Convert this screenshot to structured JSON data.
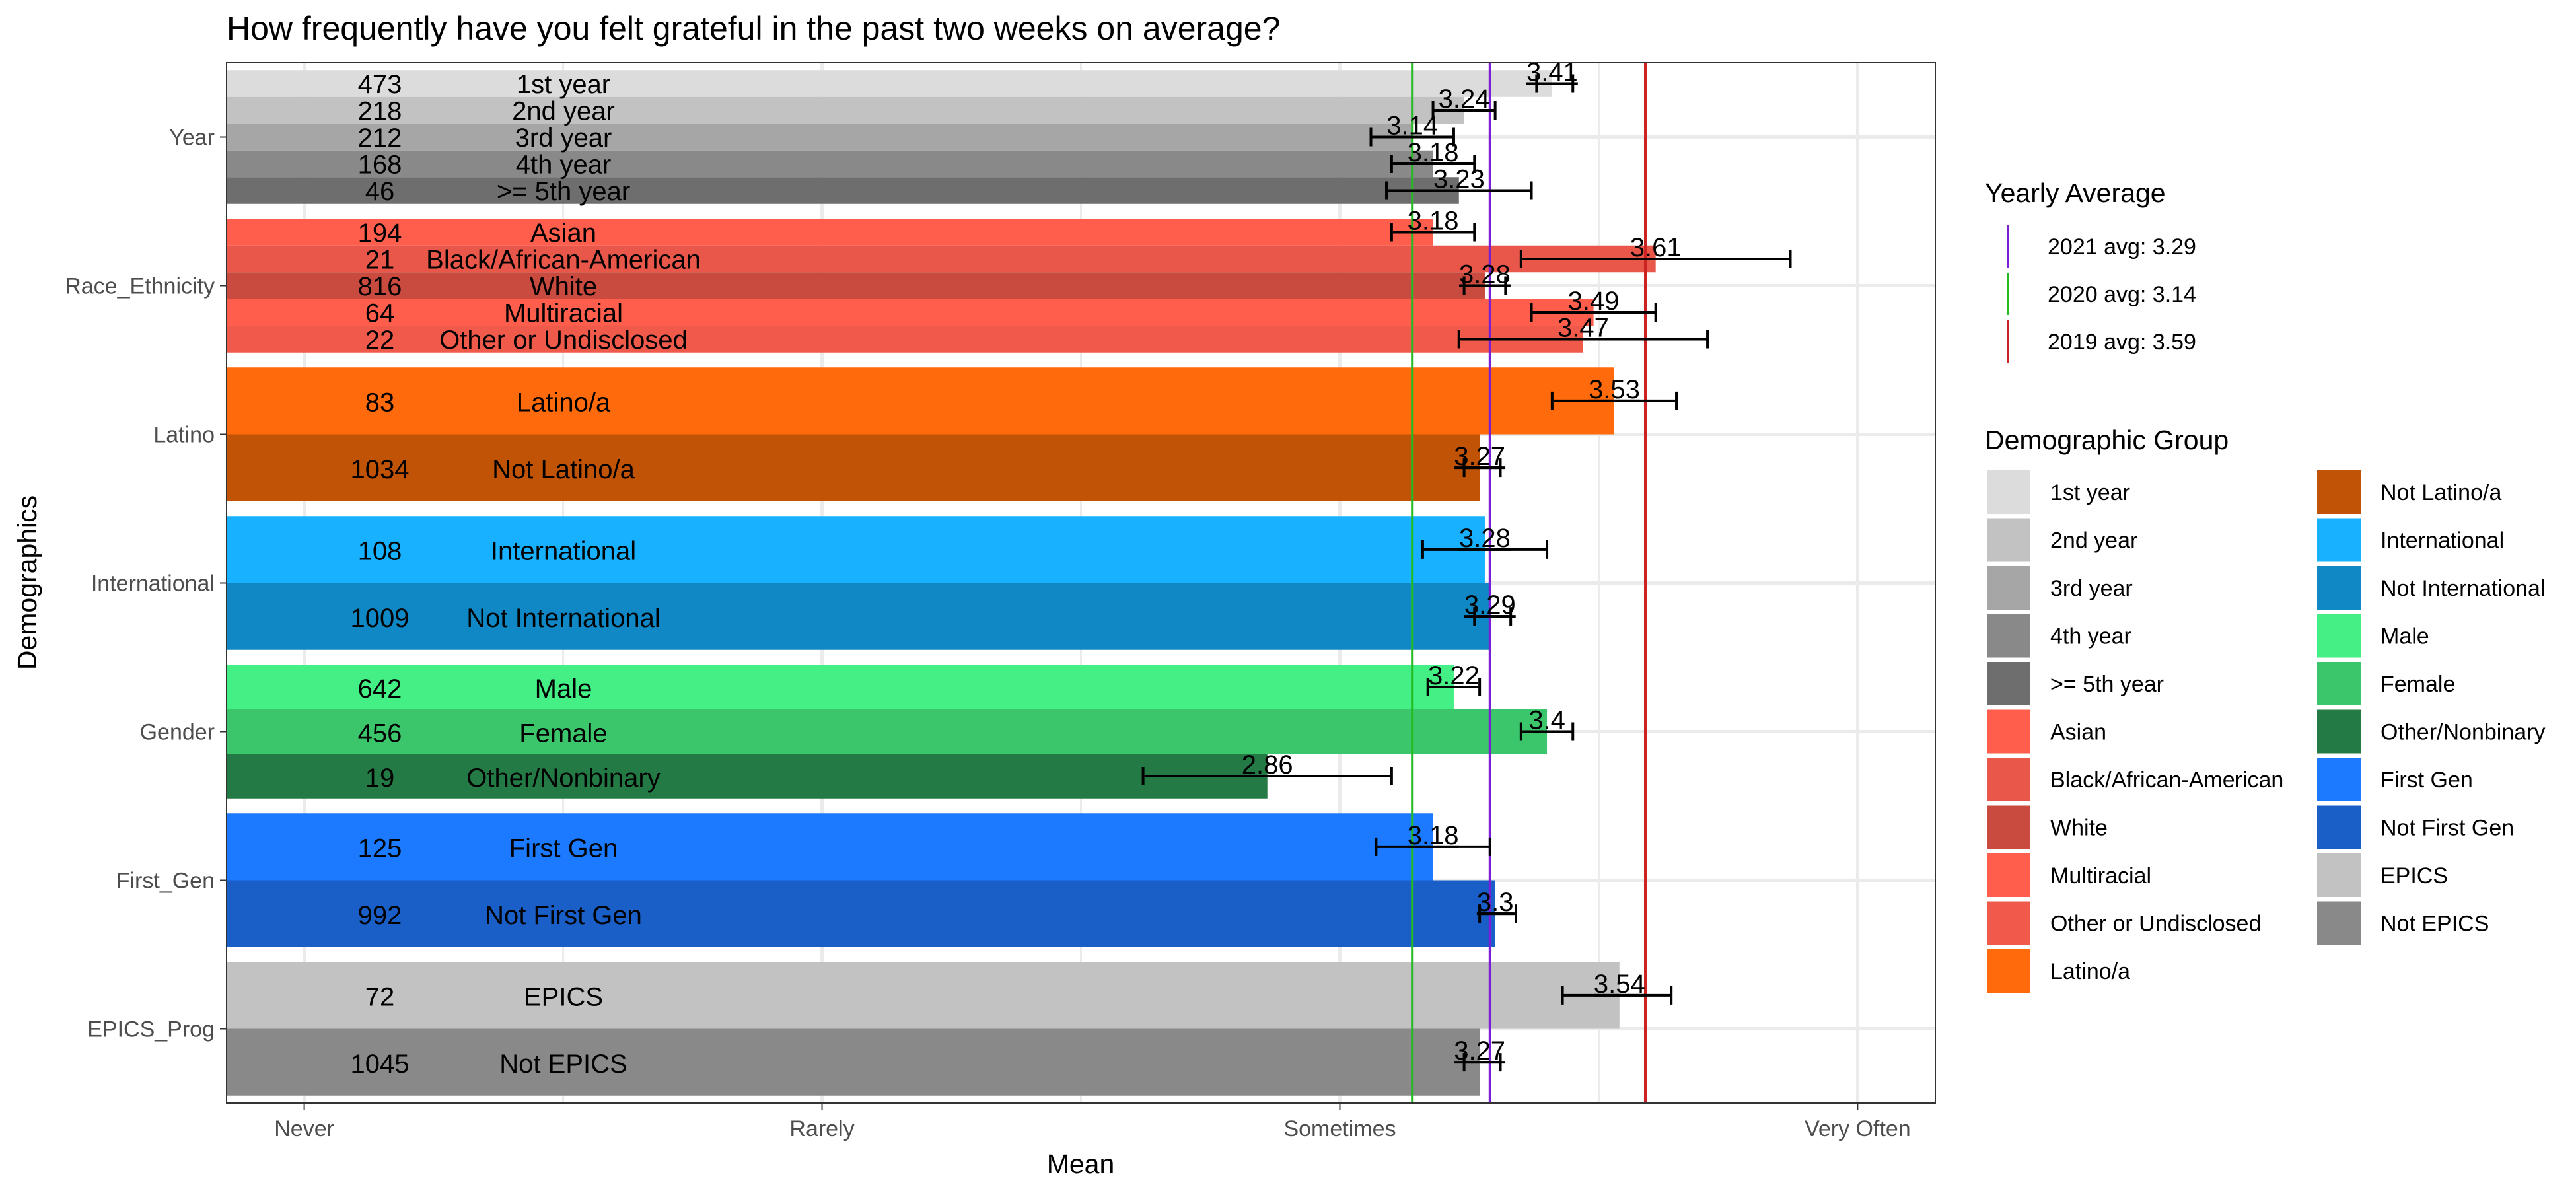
{
  "chart_data": {
    "type": "bar",
    "orientation": "horizontal",
    "title": "How frequently have you felt grateful in the past two weeks on average?",
    "xlabel": "Mean",
    "ylabel": "Demographics",
    "xlim": [
      0.85,
      4.15
    ],
    "x_ticks": [
      {
        "value": 1,
        "label": "Never"
      },
      {
        "value": 2,
        "label": "Rarely"
      },
      {
        "value": 3,
        "label": "Sometimes"
      },
      {
        "value": 4,
        "label": "Very Often"
      }
    ],
    "grid": true,
    "legend_placement": "right",
    "groups": [
      {
        "name": "Year",
        "bars": [
          {
            "label": "1st year",
            "n": "473",
            "mean": 3.41,
            "err": [
              3.38,
              3.45
            ],
            "color": "#DCDCDC"
          },
          {
            "label": "2nd year",
            "n": "218",
            "mean": 3.24,
            "err": [
              3.18,
              3.3
            ],
            "color": "#C2C2C2"
          },
          {
            "label": "3rd year",
            "n": "212",
            "mean": 3.14,
            "err": [
              3.06,
              3.22
            ],
            "color": "#A6A6A6"
          },
          {
            "label": "4th year",
            "n": "168",
            "mean": 3.18,
            "err": [
              3.1,
              3.26
            ],
            "color": "#898989"
          },
          {
            "label": ">= 5th year",
            "n": "46",
            "mean": 3.23,
            "err": [
              3.09,
              3.37
            ],
            "color": "#6E6E6E"
          }
        ]
      },
      {
        "name": "Race_Ethnicity",
        "bars": [
          {
            "label": "Asian",
            "n": "194",
            "mean": 3.18,
            "err": [
              3.1,
              3.26
            ],
            "color": "#FF5E4D"
          },
          {
            "label": "Black/African-American",
            "n": "21",
            "mean": 3.61,
            "err": [
              3.35,
              3.87
            ],
            "color": "#E8574A"
          },
          {
            "label": "White",
            "n": "816",
            "mean": 3.28,
            "err": [
              3.24,
              3.32
            ],
            "color": "#C94A3F"
          },
          {
            "label": "Multiracial",
            "n": "64",
            "mean": 3.49,
            "err": [
              3.37,
              3.61
            ],
            "color": "#FF5E4D"
          },
          {
            "label": "Other or Undisclosed",
            "n": "22",
            "mean": 3.47,
            "err": [
              3.23,
              3.71
            ],
            "color": "#EF5A4B"
          }
        ]
      },
      {
        "name": "Latino",
        "bars": [
          {
            "label": "Latino/a",
            "n": "83",
            "mean": 3.53,
            "err": [
              3.41,
              3.65
            ],
            "color": "#FF6A0C"
          },
          {
            "label": "Not Latino/a",
            "n": "1034",
            "mean": 3.27,
            "err": [
              3.24,
              3.31
            ],
            "color": "#C15306"
          }
        ]
      },
      {
        "name": "International",
        "bars": [
          {
            "label": "International",
            "n": "108",
            "mean": 3.28,
            "err": [
              3.16,
              3.4
            ],
            "color": "#18B1FF"
          },
          {
            "label": "Not International",
            "n": "1009",
            "mean": 3.29,
            "err": [
              3.26,
              3.33
            ],
            "color": "#1088C6"
          }
        ]
      },
      {
        "name": "Gender",
        "bars": [
          {
            "label": "Male",
            "n": "642",
            "mean": 3.22,
            "err": [
              3.17,
              3.27
            ],
            "color": "#44EF85"
          },
          {
            "label": "Female",
            "n": "456",
            "mean": 3.4,
            "err": [
              3.35,
              3.45
            ],
            "color": "#3CC66C"
          },
          {
            "label": "Other/Nonbinary",
            "n": "19",
            "mean": 2.86,
            "err": [
              2.62,
              3.1
            ],
            "color": "#247A44"
          }
        ]
      },
      {
        "name": "First_Gen",
        "bars": [
          {
            "label": "First Gen",
            "n": "125",
            "mean": 3.18,
            "err": [
              3.07,
              3.29
            ],
            "color": "#1B7AFF"
          },
          {
            "label": "Not First Gen",
            "n": "992",
            "mean": 3.3,
            "err": [
              3.27,
              3.34
            ],
            "color": "#1A5FC8"
          }
        ]
      },
      {
        "name": "EPICS_Prog",
        "bars": [
          {
            "label": "EPICS",
            "n": "72",
            "mean": 3.54,
            "err": [
              3.43,
              3.64
            ],
            "color": "#C2C2C2"
          },
          {
            "label": "Not EPICS",
            "n": "1045",
            "mean": 3.27,
            "err": [
              3.24,
              3.31
            ],
            "color": "#898989"
          }
        ]
      }
    ],
    "ref_lines": [
      {
        "label": "2021 avg: 3.29",
        "value": 3.29,
        "color": "#7B1FD6"
      },
      {
        "label": "2020 avg: 3.14",
        "value": 3.14,
        "color": "#22BB22"
      },
      {
        "label": "2019 avg: 3.59",
        "value": 3.59,
        "color": "#CC2222"
      }
    ],
    "legend": {
      "ref_title": "Yearly Average",
      "group_title": "Demographic Group",
      "entries": [
        {
          "label": "1st year",
          "color": "#DCDCDC"
        },
        {
          "label": "2nd year",
          "color": "#C2C2C2"
        },
        {
          "label": "3rd year",
          "color": "#A6A6A6"
        },
        {
          "label": "4th year",
          "color": "#898989"
        },
        {
          "label": ">= 5th year",
          "color": "#6E6E6E"
        },
        {
          "label": "Asian",
          "color": "#FF5E4D"
        },
        {
          "label": "Black/African-American",
          "color": "#E8574A"
        },
        {
          "label": "White",
          "color": "#C94A3F"
        },
        {
          "label": "Multiracial",
          "color": "#FF5E4D"
        },
        {
          "label": "Other or Undisclosed",
          "color": "#EF5A4B"
        },
        {
          "label": "Latino/a",
          "color": "#FF6A0C"
        },
        {
          "label": "Not Latino/a",
          "color": "#C15306"
        },
        {
          "label": "International",
          "color": "#18B1FF"
        },
        {
          "label": "Not International",
          "color": "#1088C6"
        },
        {
          "label": "Male",
          "color": "#44EF85"
        },
        {
          "label": "Female",
          "color": "#3CC66C"
        },
        {
          "label": "Other/Nonbinary",
          "color": "#247A44"
        },
        {
          "label": "First Gen",
          "color": "#1B7AFF"
        },
        {
          "label": "Not First Gen",
          "color": "#1A5FC8"
        },
        {
          "label": "EPICS",
          "color": "#C2C2C2"
        },
        {
          "label": "Not EPICS",
          "color": "#898989"
        }
      ]
    }
  }
}
